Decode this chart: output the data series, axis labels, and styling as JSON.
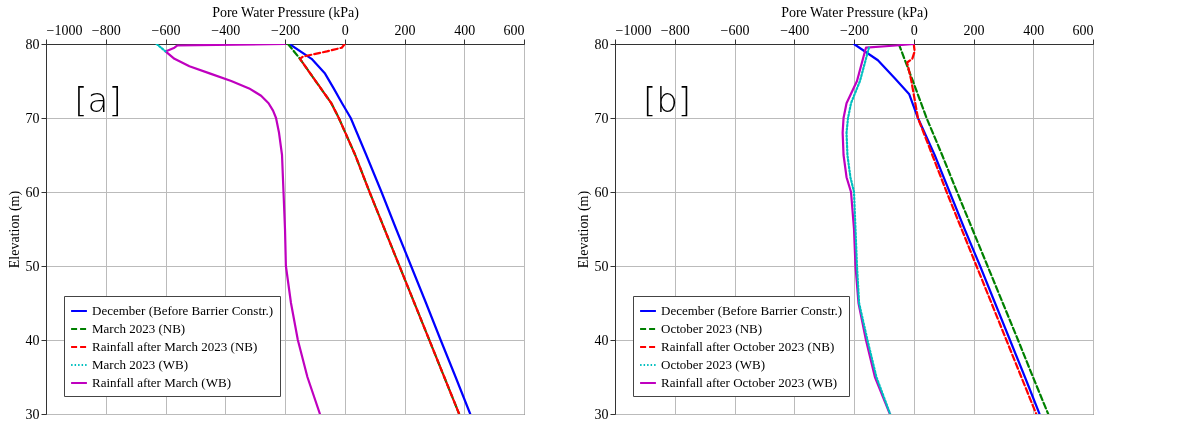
{
  "chart_data": [
    {
      "type": "line",
      "xlabel": "Pore Water Pressure (kPa)",
      "ylabel": "Elevation (m)",
      "xlim": [
        -1000,
        600
      ],
      "ylim": [
        30,
        80
      ],
      "xticks": [
        {
          "value": -1000,
          "label": "−1000"
        },
        {
          "value": -800,
          "label": "−800"
        },
        {
          "value": -600,
          "label": "−600"
        },
        {
          "value": -400,
          "label": "−400"
        },
        {
          "value": -200,
          "label": "−200"
        },
        0,
        200,
        400,
        600
      ],
      "yticks": [
        30,
        40,
        50,
        60,
        70,
        80
      ],
      "grid": true,
      "legend": "bottom left",
      "annotations": [
        "[a]"
      ],
      "series": [
        {
          "name": "December (Before Barrier Constr.)",
          "color": "#0000ff",
          "line_style": "solid",
          "x": [
            -185,
            -111,
            -66,
            -37,
            -9,
            20,
            72,
            123,
            172,
            222,
            272,
            321,
            371,
            420
          ],
          "values": [
            80,
            78,
            76,
            74,
            72,
            70,
            65,
            60,
            55,
            50,
            45,
            40,
            35,
            30
          ]
        },
        {
          "name": "March 2023 (NB)",
          "color": "#008000",
          "line_style": "dashed",
          "x": [
            -190,
            -150,
            -115,
            -80,
            -45,
            -20,
            35,
            83,
            133,
            183,
            233,
            283,
            333,
            383
          ],
          "values": [
            80,
            78,
            76,
            74,
            72,
            70,
            65,
            60,
            55,
            50,
            45,
            40,
            35,
            30
          ]
        },
        {
          "name": "Rainfall after March 2023 (NB)",
          "color": "#ff0000",
          "line_style": "dashed",
          "x": [
            0,
            -10,
            -60,
            -140,
            -150,
            -115,
            -80,
            -45,
            -20,
            35,
            83,
            133,
            183,
            233,
            283,
            333,
            383
          ],
          "values": [
            80,
            79.5,
            79,
            78.3,
            78,
            76,
            74,
            72,
            70,
            65,
            60,
            55,
            50,
            45,
            40,
            35,
            30
          ]
        },
        {
          "name": "March 2023 (WB)",
          "color": "#00bfbf",
          "line_style": "dotted",
          "x": [
            -630,
            -600
          ],
          "values": [
            80,
            79
          ]
        },
        {
          "name": "Rainfall after March (WB)",
          "color": "#bf00bf",
          "line_style": "solid",
          "x": [
            -200,
            -560,
            -570,
            -600,
            -570,
            -520,
            -450,
            -380,
            -320,
            -280,
            -255,
            -240,
            -230,
            -220,
            -210,
            -205,
            -200,
            -197,
            -180,
            -157,
            -125,
            -83
          ],
          "values": [
            80,
            79.8,
            79.5,
            79,
            78,
            77,
            76,
            75,
            74,
            73,
            72,
            71,
            70,
            68,
            65,
            60,
            55,
            50,
            45,
            40,
            35,
            30
          ]
        }
      ]
    },
    {
      "type": "line",
      "xlabel": "Pore Water Pressure (kPa)",
      "ylabel": "Elevation (m)",
      "xlim": [
        -1000,
        600
      ],
      "ylim": [
        30,
        80
      ],
      "xticks": [
        {
          "value": -1000,
          "label": "−1000"
        },
        {
          "value": -800,
          "label": "−800"
        },
        {
          "value": -600,
          "label": "−600"
        },
        {
          "value": -400,
          "label": "−400"
        },
        {
          "value": -200,
          "label": "−200"
        },
        0,
        200,
        400,
        600
      ],
      "yticks": [
        30,
        40,
        50,
        60,
        70,
        80
      ],
      "grid": true,
      "legend": "bottom left",
      "annotations": [
        "[b]"
      ],
      "series": [
        {
          "name": "December (Before Barrier Constr.)",
          "color": "#0000ff",
          "line_style": "solid",
          "x": [
            -200,
            -120,
            -62,
            -15,
            14,
            70,
            120,
            170,
            222,
            272,
            322,
            372,
            421
          ],
          "values": [
            80,
            77.8,
            75.3,
            73.2,
            70,
            65,
            60,
            55,
            50,
            45,
            40,
            35,
            30
          ]
        },
        {
          "name": "October 2023 (NB)",
          "color": "#008000",
          "line_style": "dashed",
          "x": [
            -50,
            -3,
            43,
            95,
            145,
            196,
            247,
            298,
            349,
            399,
            450
          ],
          "values": [
            80,
            75,
            70,
            65,
            60,
            55,
            50,
            45,
            40,
            35,
            30
          ]
        },
        {
          "name": "Rainfall after October 2023 (NB)",
          "color": "#ff0000",
          "line_style": "dashed",
          "x": [
            0,
            3,
            -5,
            -22,
            -8,
            14,
            62,
            110,
            160,
            210,
            260,
            310,
            360,
            410
          ],
          "values": [
            80,
            79,
            78,
            77.5,
            75,
            70,
            65,
            60,
            55,
            50,
            45,
            40,
            35,
            30
          ]
        },
        {
          "name": "October 2023 (WB)",
          "color": "#00bfbf",
          "line_style": "dotted",
          "x": [
            -150,
            -160,
            -180,
            -210,
            -220,
            -225,
            -222,
            -212,
            -200,
            -195,
            -190,
            -183,
            -155,
            -125,
            -79
          ],
          "values": [
            79.5,
            78,
            75,
            72,
            70,
            68,
            65,
            62,
            60,
            55,
            50,
            45,
            40,
            35,
            30
          ]
        },
        {
          "name": "Rainfall after October 2023 (WB)",
          "color": "#bf00bf",
          "line_style": "solid",
          "x": [
            0,
            -60,
            -160,
            -170,
            -190,
            -225,
            -235,
            -238,
            -235,
            -225,
            -210,
            -200,
            -195,
            -185,
            -160,
            -130,
            -80
          ],
          "values": [
            80,
            79.8,
            79.5,
            78,
            75,
            72,
            70,
            68,
            65,
            62,
            60,
            55,
            50,
            45,
            40,
            35,
            30
          ]
        }
      ]
    }
  ]
}
